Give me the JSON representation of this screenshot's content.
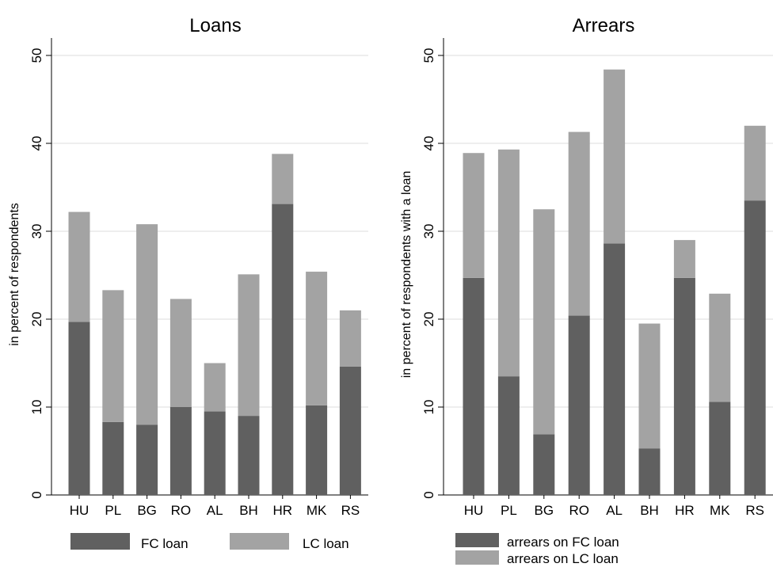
{
  "colors": {
    "fc": "#606060",
    "lc": "#a3a3a3",
    "grid": "#dcdcdc"
  },
  "chart_data": [
    {
      "type": "bar",
      "stacked": true,
      "title": "Loans",
      "xlabel": "",
      "ylabel": "in percent of respondents",
      "ylim": [
        0,
        50
      ],
      "yticks": [
        "0",
        "10",
        "20",
        "30",
        "40",
        "50"
      ],
      "grid": true,
      "categories": [
        "HU",
        "PL",
        "BG",
        "RO",
        "AL",
        "BH",
        "HR",
        "MK",
        "RS"
      ],
      "series": [
        {
          "name": "FC loan",
          "values": [
            19.7,
            8.3,
            8.0,
            10.0,
            9.5,
            9.0,
            33.1,
            10.2,
            14.6
          ]
        },
        {
          "name": "LC loan",
          "values": [
            12.5,
            15.0,
            22.8,
            12.3,
            5.5,
            16.1,
            5.7,
            15.2,
            6.4
          ]
        }
      ],
      "legend": {
        "position": "bottom",
        "layout": "row",
        "labels": [
          "FC loan",
          "LC loan"
        ]
      }
    },
    {
      "type": "bar",
      "stacked": true,
      "title": "Arrears",
      "xlabel": "",
      "ylabel": "in percent of respondents with a loan",
      "ylim": [
        0,
        50
      ],
      "yticks": [
        "0",
        "10",
        "20",
        "30",
        "40",
        "50"
      ],
      "grid": true,
      "categories": [
        "HU",
        "PL",
        "BG",
        "RO",
        "AL",
        "BH",
        "HR",
        "MK",
        "RS"
      ],
      "series": [
        {
          "name": "arrears on FC loan",
          "values": [
            24.7,
            13.5,
            6.9,
            20.4,
            28.6,
            5.3,
            24.7,
            10.6,
            33.5
          ]
        },
        {
          "name": "arrears on LC loan",
          "values": [
            14.2,
            25.8,
            25.6,
            20.9,
            19.8,
            14.2,
            4.3,
            12.3,
            8.5
          ]
        }
      ],
      "legend": {
        "position": "bottom",
        "layout": "column",
        "labels": [
          "arrears on FC loan",
          "arrears on LC loan"
        ]
      }
    }
  ]
}
